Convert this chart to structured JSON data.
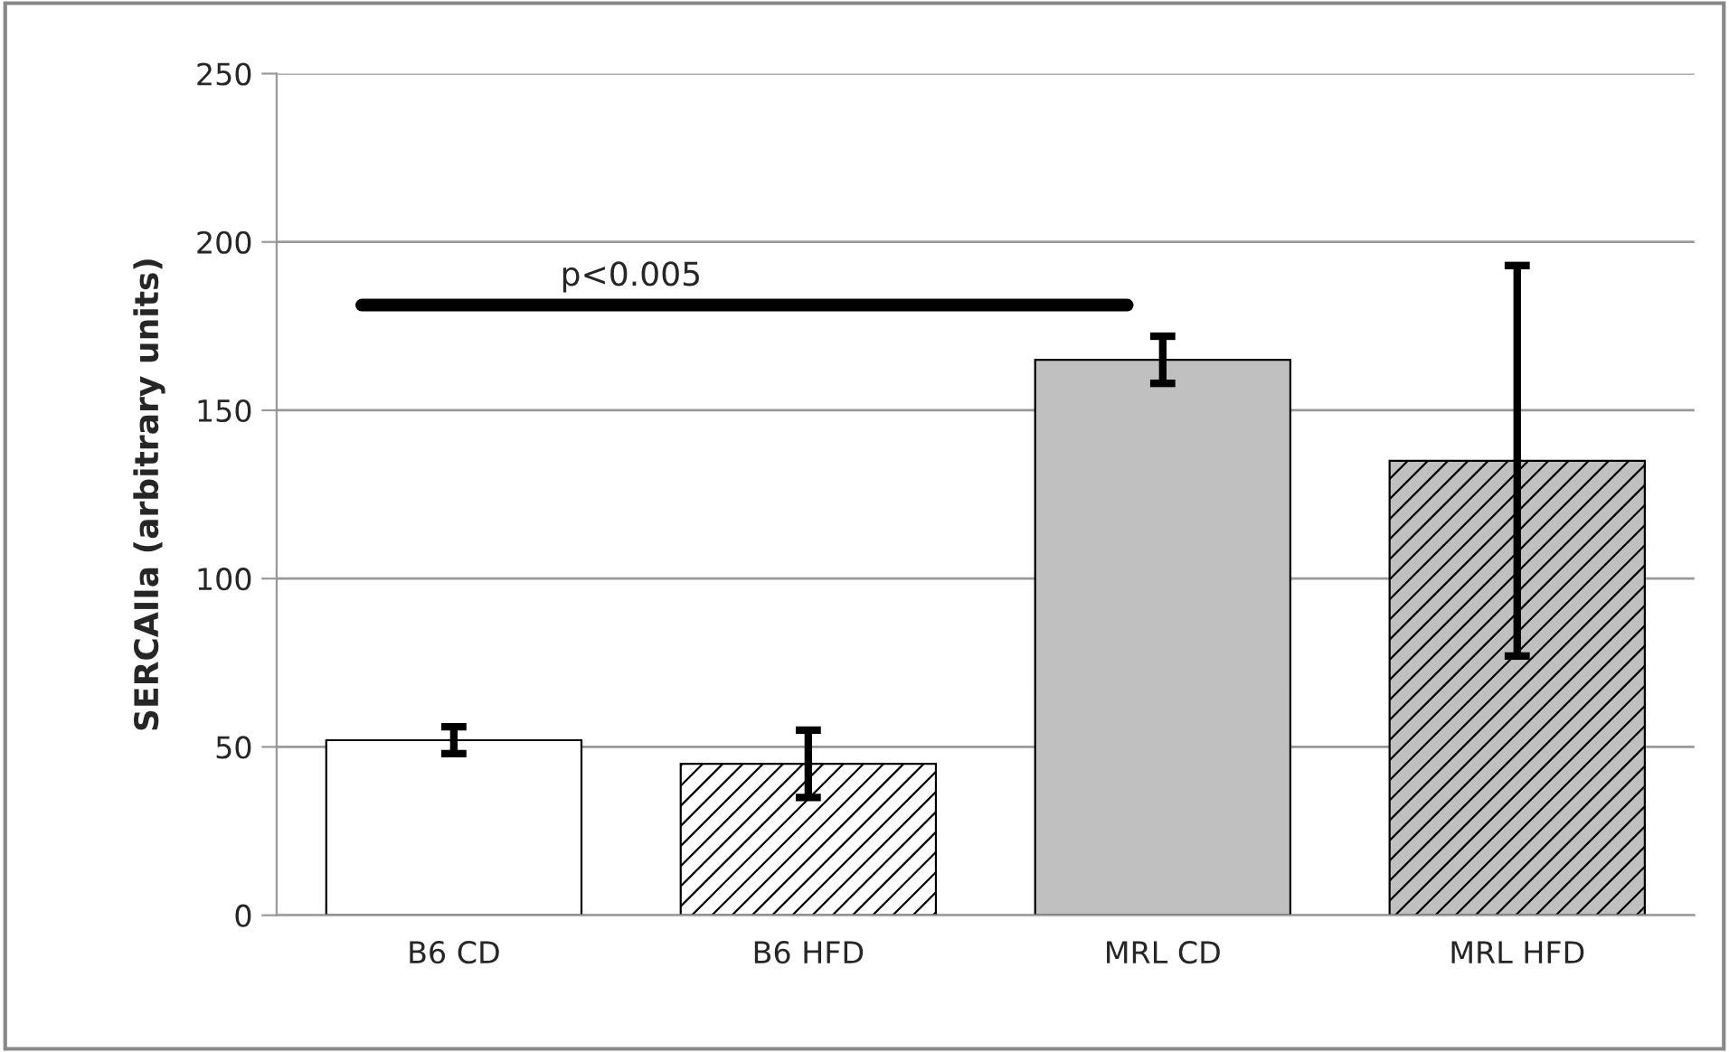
{
  "chart_data": {
    "type": "bar",
    "ylabel": "SERCAIIa (arbitrary units)",
    "categories": [
      "B6 CD",
      "B6 HFD",
      "MRL CD",
      "MRL HFD"
    ],
    "values": [
      52,
      45,
      165,
      135
    ],
    "errors": [
      4,
      10,
      7,
      58
    ],
    "colors": [
      "#ffffff",
      "#ffffff",
      "#c0c0c0",
      "#c0c0c0"
    ],
    "ylim": [
      0,
      250
    ],
    "yticks": [
      0,
      50,
      100,
      150,
      200,
      250
    ],
    "grid": "y",
    "annotations": [
      "p<0.005"
    ]
  }
}
